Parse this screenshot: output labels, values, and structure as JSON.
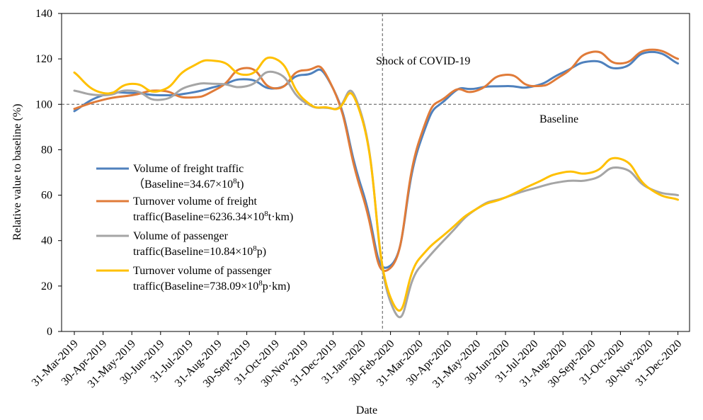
{
  "chart_data": {
    "type": "line",
    "title": "",
    "xlabel": "Date",
    "ylabel": "Relative value to baseline (%)",
    "ylim": [
      0,
      140
    ],
    "yticks": [
      0,
      20,
      40,
      60,
      80,
      100,
      120,
      140
    ],
    "categories": [
      "31-Mar-2019",
      "30-Apr-2019",
      "31-May-2019",
      "30-Jun-2019",
      "31-Jul-2019",
      "31-Aug-2019",
      "30-Sept-2019",
      "31-Oct-2019",
      "30-Nov-2019",
      "31-Dec-2019",
      "31-Jan-2020",
      "30-Feb-2020",
      "31-Mar-2020",
      "30-Apr-2020",
      "31-May-2020",
      "30-Jun-2020",
      "31-Jul-2020",
      "31-Aug-2020",
      "30-Sept-2020",
      "31-Oct-2020",
      "30-Nov-2020",
      "31-Dec-2020"
    ],
    "series": [
      {
        "name": "Volume of freight traffic",
        "legend_line1": "Volume of freight traffic",
        "legend_line2_pre": "（Baseline=34.67×10",
        "legend_sup": "8",
        "legend_line2_post": "t)",
        "color": "#4f81bd",
        "values": [
          97,
          104,
          105,
          104,
          105,
          108,
          111,
          107,
          113,
          107,
          63,
          29,
          82,
          103,
          107,
          108,
          108,
          114,
          119,
          116,
          123,
          118
        ]
      },
      {
        "name": "Turnover volume of freight traffic",
        "legend_line1": "Turnover volume of freight",
        "legend_line2_pre": "traffic(Baseline=6236.34×10",
        "legend_sup": "8",
        "legend_line2_post": "t·km)",
        "color": "#e07b39",
        "values": [
          98,
          102,
          104,
          106,
          103,
          107,
          116,
          107,
          115,
          107,
          61,
          28,
          84,
          104,
          106,
          113,
          108,
          113,
          123,
          118,
          124,
          120
        ]
      },
      {
        "name": "Volume of passenger traffic",
        "legend_line1": "Volume of passenger",
        "legend_line2_pre": "traffic(Baseline=10.84×10",
        "legend_sup": "8",
        "legend_line2_post": "p)",
        "color": "#a5a5a5",
        "values": [
          106,
          104,
          106,
          102,
          108,
          109,
          108,
          114,
          101,
          98,
          95,
          13,
          28,
          42,
          54,
          59,
          63,
          66,
          67,
          72,
          63,
          60
        ]
      },
      {
        "name": "Turnover volume of passenger traffic",
        "legend_line1": "Turnover volume of passenger",
        "legend_line2_pre": "traffic(Baseline=738.09×10",
        "legend_sup": "8",
        "legend_line2_post": "p·km)",
        "color": "#ffc000",
        "values": [
          114,
          105,
          109,
          106,
          116,
          119,
          113,
          120,
          102,
          98,
          94,
          15,
          32,
          44,
          54,
          59,
          65,
          70,
          70,
          76,
          63,
          58
        ]
      }
    ],
    "reference_line": {
      "value": 100,
      "label": "Baseline"
    },
    "event_line": {
      "category": "31-Jan-2020",
      "label": "Shock of COVID-19"
    }
  }
}
